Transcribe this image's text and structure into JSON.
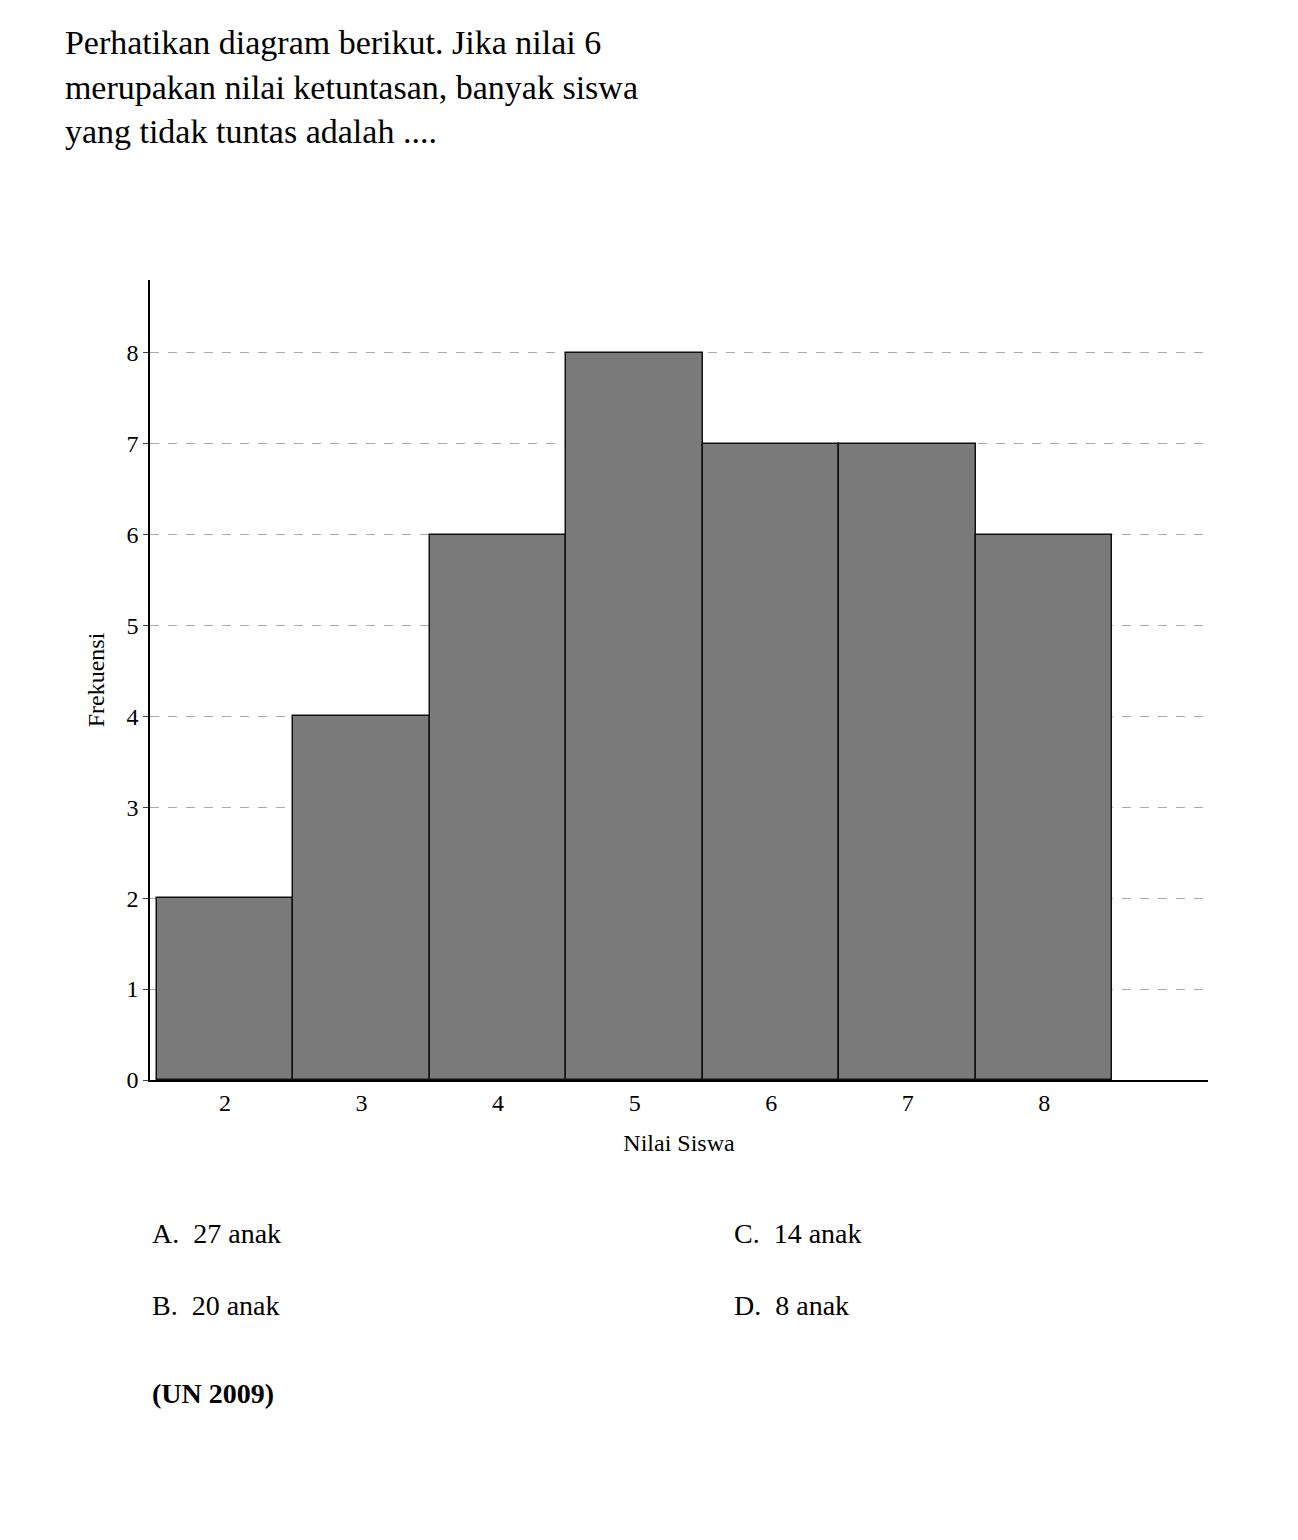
{
  "chart_data": {
    "type": "bar",
    "title": [
      "Perhatikan diagram berikut. Jika nilai 6",
      "merupakan nilai ketuntasan, banyak siswa",
      "yang tidak tuntas adalah ...."
    ],
    "x": [
      2,
      3,
      4,
      5,
      6,
      7,
      8
    ],
    "values": [
      2,
      4,
      6,
      8,
      7,
      7,
      6
    ],
    "color": "#7a7a7a",
    "xlabel": "Nilai Siswa",
    "ylabel": "Frekuensi",
    "xlim": [
      1.45,
      9.2
    ],
    "xticks": [
      2,
      3,
      4,
      5,
      6,
      7,
      8
    ],
    "ylim": [
      0,
      8.8
    ],
    "yticks": [
      0,
      1,
      2,
      3,
      4,
      5,
      6,
      7,
      8
    ],
    "grid": true,
    "annotations": [
      "A.  27 anak",
      "B.  20 anak",
      "C.  14 anak",
      "D.  8 anak",
      "(UN 2009)"
    ]
  }
}
